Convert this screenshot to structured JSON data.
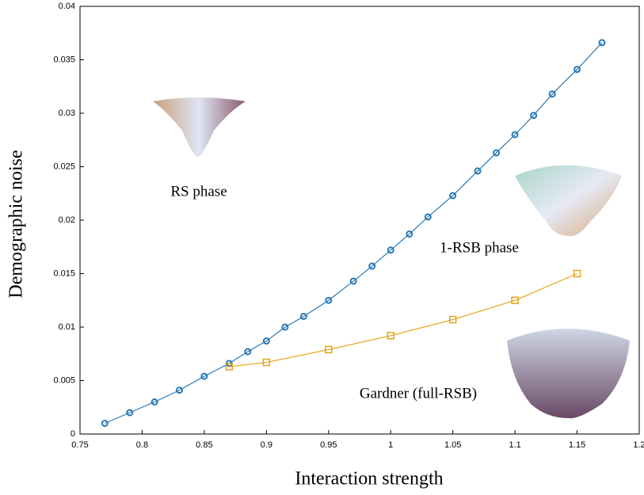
{
  "chart_data": {
    "type": "line",
    "xlabel": "Interaction strength",
    "ylabel": "Demographic noise",
    "xlim": [
      0.75,
      1.2
    ],
    "xticks": [
      0.75,
      0.8,
      0.85,
      0.9,
      0.95,
      1,
      1.05,
      1.1,
      1.15,
      1.2
    ],
    "ylim": [
      0,
      0.04
    ],
    "yticks": [
      0,
      0.005,
      0.01,
      0.015,
      0.02,
      0.025,
      0.03,
      0.035,
      0.04
    ],
    "grid": false,
    "series": [
      {
        "color": "#2878b5",
        "marker": "circle",
        "x": [
          0.77,
          0.79,
          0.81,
          0.83,
          0.85,
          0.87,
          0.885,
          0.9,
          0.915,
          0.93,
          0.95,
          0.97,
          0.985,
          1.0,
          1.015,
          1.03,
          1.05,
          1.07,
          1.085,
          1.1,
          1.115,
          1.13,
          1.15,
          1.17
        ],
        "values": [
          0.001,
          0.002,
          0.003,
          0.0041,
          0.0054,
          0.0066,
          0.0077,
          0.0087,
          0.01,
          0.011,
          0.0125,
          0.0143,
          0.0157,
          0.0172,
          0.0187,
          0.0203,
          0.0223,
          0.0246,
          0.0263,
          0.028,
          0.0298,
          0.0318,
          0.0341,
          0.0366
        ]
      },
      {
        "color": "#e8a31a",
        "marker": "square",
        "x": [
          0.87,
          0.9,
          0.95,
          1.0,
          1.05,
          1.1,
          1.15
        ],
        "values": [
          0.0063,
          0.0067,
          0.0079,
          0.0092,
          0.0107,
          0.0125,
          0.015
        ]
      }
    ],
    "annotations": [
      "RS phase",
      "1-RSB phase",
      "Gardner (full-RSB)"
    ]
  }
}
